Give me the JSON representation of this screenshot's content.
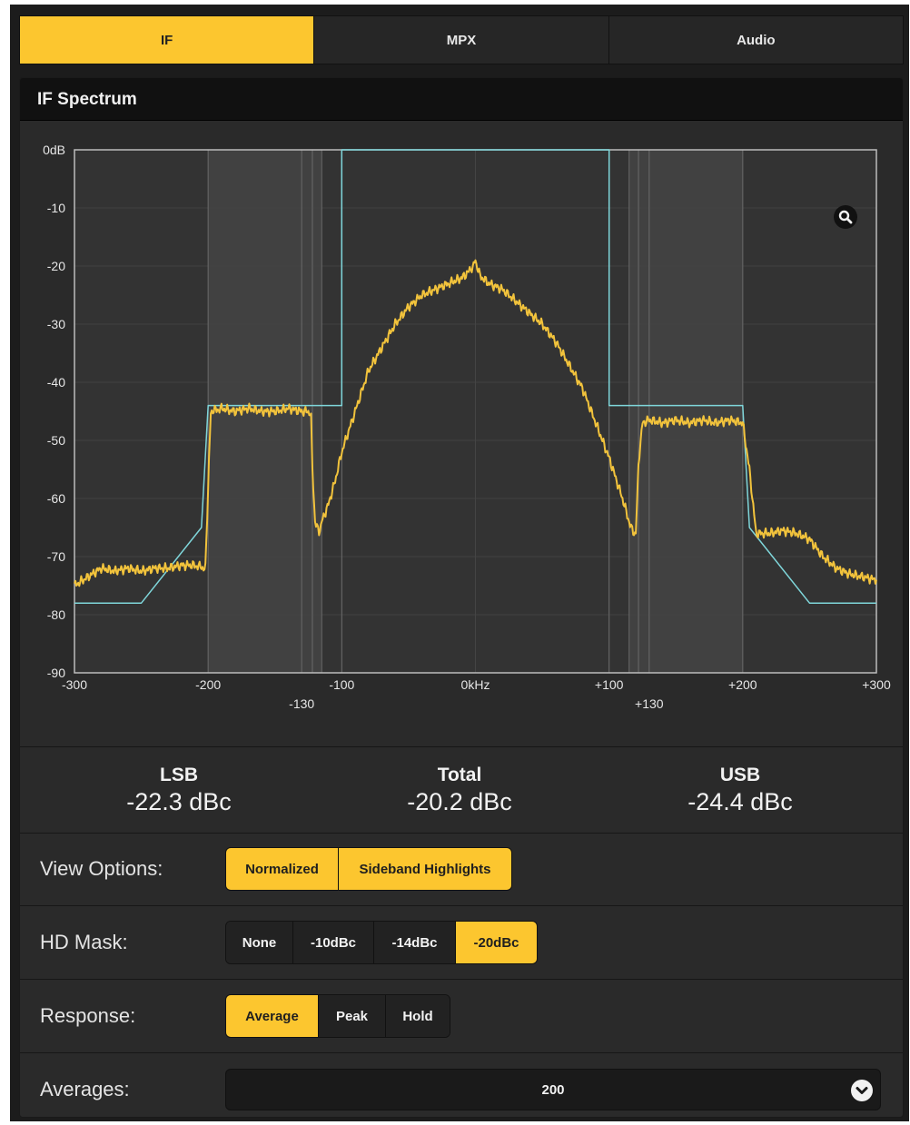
{
  "tabs": [
    {
      "label": "IF",
      "active": true
    },
    {
      "label": "MPX",
      "active": false
    },
    {
      "label": "Audio",
      "active": false
    }
  ],
  "panel": {
    "title": "IF Spectrum"
  },
  "chart_data": {
    "type": "line",
    "xlim": [
      -300,
      300
    ],
    "ylim": [
      -90,
      0
    ],
    "x_ticks": [
      {
        "value": -300,
        "label": "-300"
      },
      {
        "value": -200,
        "label": "-200"
      },
      {
        "value": -100,
        "label": "-100"
      },
      {
        "value": 0,
        "label": "0kHz"
      },
      {
        "value": 100,
        "label": "+100"
      },
      {
        "value": 200,
        "label": "+200"
      },
      {
        "value": 300,
        "label": "+300"
      }
    ],
    "x_secondary_ticks": [
      {
        "value": -130,
        "label": "-130"
      },
      {
        "value": 130,
        "label": "+130"
      }
    ],
    "y_ticks": [
      {
        "value": 0,
        "label": "0dB"
      },
      {
        "value": -10,
        "label": "-10"
      },
      {
        "value": -20,
        "label": "-20"
      },
      {
        "value": -30,
        "label": "-30"
      },
      {
        "value": -40,
        "label": "-40"
      },
      {
        "value": -50,
        "label": "-50"
      },
      {
        "value": -60,
        "label": "-60"
      },
      {
        "value": -70,
        "label": "-70"
      },
      {
        "value": -80,
        "label": "-80"
      },
      {
        "value": -90,
        "label": "-90"
      }
    ],
    "marker_lines": [
      -200,
      -130,
      -122,
      -115,
      -100,
      100,
      115,
      122,
      130,
      200
    ],
    "sideband_highlights": [
      [
        -200,
        -115
      ],
      [
        115,
        200
      ]
    ],
    "grid": true,
    "series": [
      {
        "color": "#f2c33c",
        "x": [
          -300,
          -290,
          -280,
          -270,
          -260,
          -250,
          -240,
          -230,
          -220,
          -210,
          -202,
          -200,
          -198,
          -190,
          -180,
          -170,
          -160,
          -150,
          -140,
          -130,
          -125,
          -123,
          -122,
          -120,
          -117,
          -115,
          -110,
          -105,
          -100,
          -90,
          -80,
          -70,
          -60,
          -50,
          -40,
          -30,
          -20,
          -10,
          -5,
          -2,
          0,
          2,
          5,
          10,
          20,
          30,
          40,
          50,
          60,
          70,
          80,
          90,
          100,
          110,
          115,
          118,
          120,
          122,
          125,
          130,
          140,
          150,
          160,
          170,
          180,
          190,
          200,
          205,
          210,
          220,
          230,
          240,
          250,
          260,
          270,
          280,
          290,
          300
        ],
        "y": [
          -75,
          -73.5,
          -72,
          -72.5,
          -72,
          -72.5,
          -72,
          -72,
          -71.5,
          -71.5,
          -72,
          -58,
          -45,
          -44.5,
          -45,
          -44.5,
          -45,
          -45,
          -44.5,
          -45,
          -45,
          -46,
          -55,
          -64,
          -66,
          -64,
          -61,
          -57,
          -52,
          -45,
          -38,
          -34,
          -30,
          -27,
          -25,
          -24,
          -23,
          -22,
          -21,
          -20,
          -19,
          -21,
          -22,
          -23,
          -24,
          -26,
          -28,
          -30,
          -33,
          -37,
          -41,
          -47,
          -53,
          -60,
          -64,
          -66,
          -66,
          -54,
          -47,
          -46.5,
          -47,
          -46.5,
          -47,
          -46.5,
          -47,
          -46.5,
          -47,
          -55,
          -66,
          -66,
          -65.5,
          -66,
          -67,
          -70,
          -72,
          -73,
          -73.5,
          -74
        ]
      },
      {
        "color": "#7fd6da",
        "x": [
          -300,
          -250,
          -205,
          -200,
          -100,
          -100,
          100,
          100,
          200,
          205,
          250,
          300
        ],
        "y": [
          -78,
          -78,
          -65,
          -44,
          -44,
          0,
          0,
          -44,
          -44,
          -65,
          -78,
          -78
        ]
      }
    ]
  },
  "readouts": [
    {
      "label": "LSB",
      "value": "-22.3 dBc"
    },
    {
      "label": "Total",
      "value": "-20.2 dBc"
    },
    {
      "label": "USB",
      "value": "-24.4 dBc"
    }
  ],
  "view_options": {
    "label": "View Options:",
    "buttons": [
      {
        "label": "Normalized",
        "active": true
      },
      {
        "label": "Sideband Highlights",
        "active": true
      }
    ]
  },
  "hd_mask": {
    "label": "HD Mask:",
    "buttons": [
      {
        "label": "None",
        "active": false
      },
      {
        "label": "-10dBc",
        "active": false
      },
      {
        "label": "-14dBc",
        "active": false
      },
      {
        "label": "-20dBc",
        "active": true
      }
    ]
  },
  "response": {
    "label": "Response:",
    "buttons": [
      {
        "label": "Average",
        "active": true
      },
      {
        "label": "Peak",
        "active": false
      },
      {
        "label": "Hold",
        "active": false
      }
    ]
  },
  "averages": {
    "label": "Averages:",
    "value": "200"
  },
  "icons": {
    "zoom": "search-icon",
    "dropdown": "chevron-down-icon"
  }
}
